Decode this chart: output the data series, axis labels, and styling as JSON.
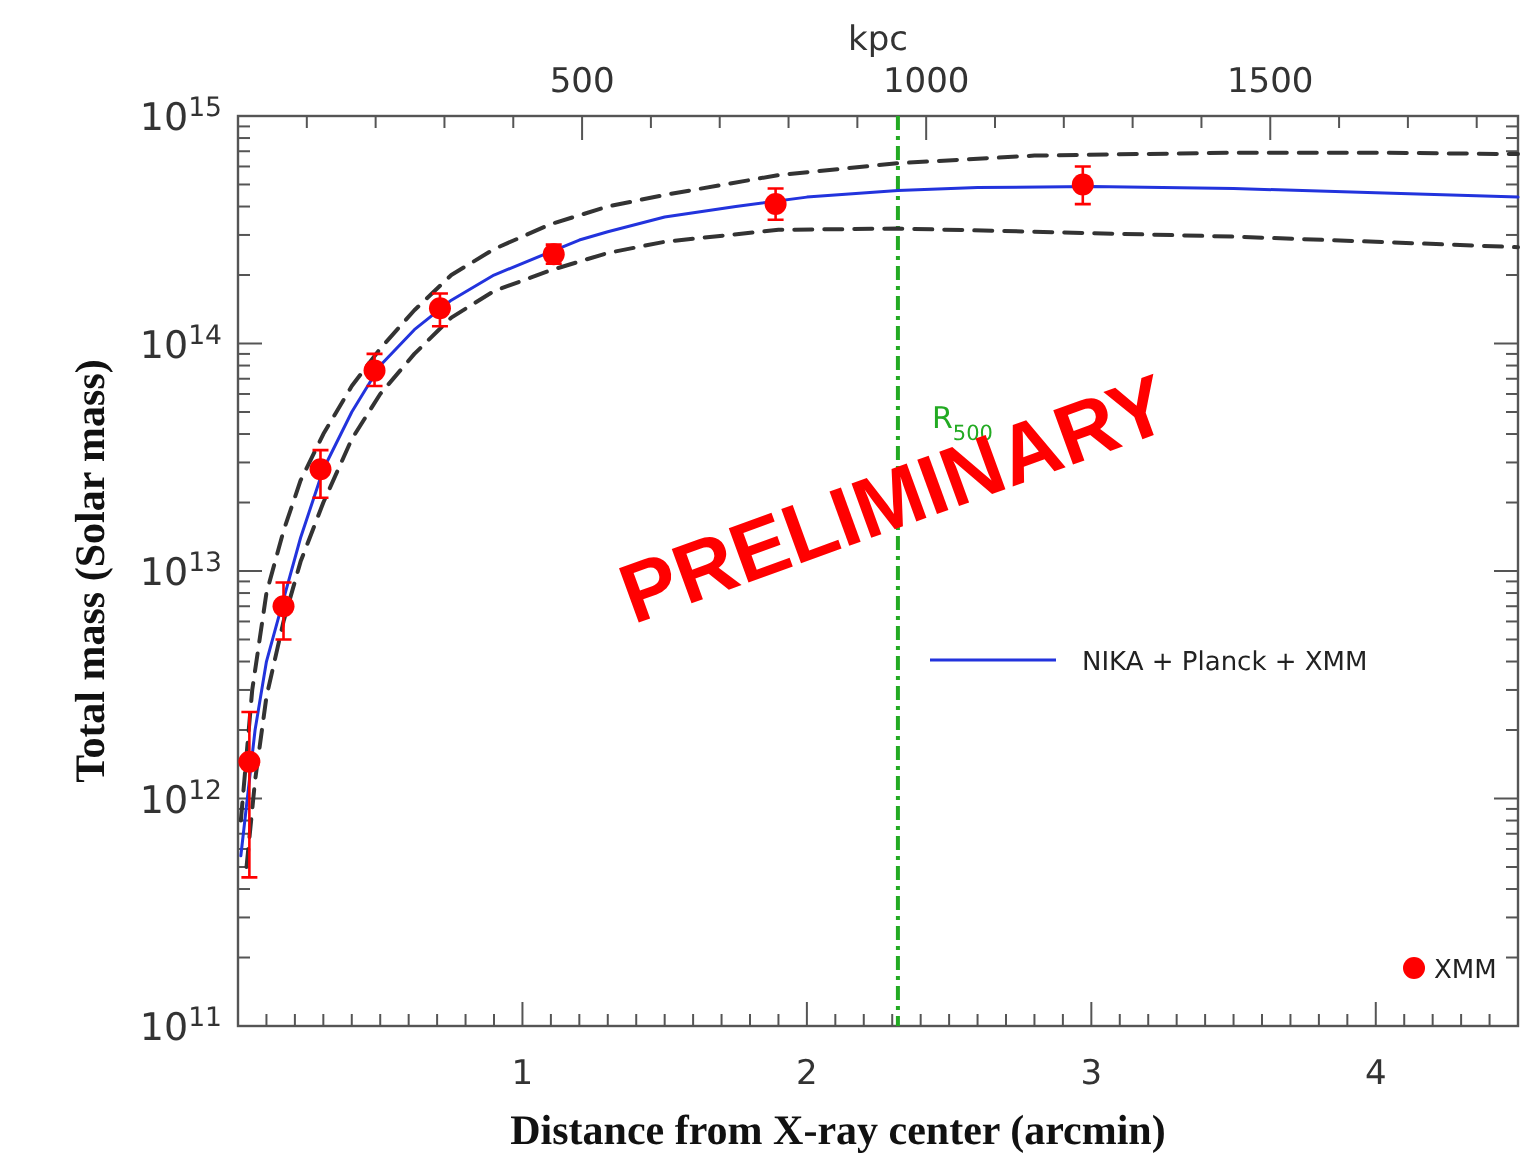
{
  "chart_data": {
    "type": "line",
    "xlabel": "Distance from X-ray center (arcmin)",
    "ylabel": "Total mass (Solar mass)",
    "x2label": "kpc",
    "log": "y",
    "legend": "right",
    "xlim": [
      0,
      4.5
    ],
    "xticks": [
      {
        "value": 0.1,
        "label": null
      },
      {
        "value": 0.2,
        "label": null
      },
      {
        "value": 0.3,
        "label": null
      },
      {
        "value": 0.4,
        "label": null
      },
      {
        "value": 0.5,
        "label": null
      },
      {
        "value": 0.6,
        "label": null
      },
      {
        "value": 0.7,
        "label": null
      },
      {
        "value": 0.8,
        "label": null
      },
      {
        "value": 0.9,
        "label": null
      },
      1,
      {
        "value": 1.1,
        "label": null
      },
      {
        "value": 1.2,
        "label": null
      },
      {
        "value": 1.3,
        "label": null
      },
      {
        "value": 1.4,
        "label": null
      },
      {
        "value": 1.5,
        "label": null
      },
      {
        "value": 1.6,
        "label": null
      },
      {
        "value": 1.7,
        "label": null
      },
      {
        "value": 1.8,
        "label": null
      },
      {
        "value": 1.9,
        "label": null
      },
      2,
      {
        "value": 2.1,
        "label": null
      },
      {
        "value": 2.2,
        "label": null
      },
      {
        "value": 2.3,
        "label": null
      },
      {
        "value": 2.4,
        "label": null
      },
      {
        "value": 2.5,
        "label": null
      },
      {
        "value": 2.6,
        "label": null
      },
      {
        "value": 2.7,
        "label": null
      },
      {
        "value": 2.8,
        "label": null
      },
      {
        "value": 2.9,
        "label": null
      },
      3,
      {
        "value": 3.1,
        "label": null
      },
      {
        "value": 3.2,
        "label": null
      },
      {
        "value": 3.3,
        "label": null
      },
      {
        "value": 3.4,
        "label": null
      },
      {
        "value": 3.5,
        "label": null
      },
      {
        "value": 3.6,
        "label": null
      },
      {
        "value": 3.7,
        "label": null
      },
      {
        "value": 3.8,
        "label": null
      },
      {
        "value": 3.9,
        "label": null
      },
      4,
      {
        "value": 4.1,
        "label": null
      },
      {
        "value": 4.2,
        "label": null
      },
      {
        "value": 4.3,
        "label": null
      },
      {
        "value": 4.4,
        "label": null
      }
    ],
    "x2lim": [
      0,
      1860
    ],
    "x2ticks": [
      {
        "value": 100,
        "label": null
      },
      {
        "value": 200,
        "label": null
      },
      {
        "value": 300,
        "label": null
      },
      {
        "value": 400,
        "label": null
      },
      500,
      {
        "value": 600,
        "label": null
      },
      {
        "value": 700,
        "label": null
      },
      {
        "value": 800,
        "label": null
      },
      {
        "value": 900,
        "label": null
      },
      1000,
      {
        "value": 1100,
        "label": null
      },
      {
        "value": 1200,
        "label": null
      },
      {
        "value": 1300,
        "label": null
      },
      {
        "value": 1400,
        "label": null
      },
      1500,
      {
        "value": 1600,
        "label": null
      },
      {
        "value": 1700,
        "label": null
      },
      {
        "value": 1800,
        "label": null
      }
    ],
    "ylim": [
      100000000000.0,
      1000000000000000.0
    ],
    "yticks": [
      {
        "value": 100000000000.0,
        "label": "10$^{11}$"
      },
      {
        "value": 200000000000.0,
        "label": null
      },
      {
        "value": 300000000000.0,
        "label": null
      },
      {
        "value": 400000000000.0,
        "label": null
      },
      {
        "value": 500000000000.0,
        "label": null
      },
      {
        "value": 600000000000.0,
        "label": null
      },
      {
        "value": 700000000000.0,
        "label": null
      },
      {
        "value": 800000000000.0,
        "label": null
      },
      {
        "value": 900000000000.0,
        "label": null
      },
      {
        "value": 1000000000000.0,
        "label": "10$^{12}$"
      },
      {
        "value": 2000000000000.0,
        "label": null
      },
      {
        "value": 3000000000000.0,
        "label": null
      },
      {
        "value": 4000000000000.0,
        "label": null
      },
      {
        "value": 5000000000000.0,
        "label": null
      },
      {
        "value": 6000000000000.0,
        "label": null
      },
      {
        "value": 7000000000000.0,
        "label": null
      },
      {
        "value": 8000000000000.0,
        "label": null
      },
      {
        "value": 9000000000000.0,
        "label": null
      },
      {
        "value": 10000000000000.0,
        "label": "10$^{13}$"
      },
      {
        "value": 20000000000000.0,
        "label": null
      },
      {
        "value": 30000000000000.0,
        "label": null
      },
      {
        "value": 40000000000000.0,
        "label": null
      },
      {
        "value": 50000000000000.0,
        "label": null
      },
      {
        "value": 60000000000000.0,
        "label": null
      },
      {
        "value": 70000000000000.0,
        "label": null
      },
      {
        "value": 80000000000000.0,
        "label": null
      },
      {
        "value": 90000000000000.0,
        "label": null
      },
      {
        "value": 100000000000000.0,
        "label": "10$^{14}$"
      },
      {
        "value": 200000000000000.0,
        "label": null
      },
      {
        "value": 300000000000000.0,
        "label": null
      },
      {
        "value": 400000000000000.0,
        "label": null
      },
      {
        "value": 500000000000000.0,
        "label": null
      },
      {
        "value": 600000000000000.0,
        "label": null
      },
      {
        "value": 700000000000000.0,
        "label": null
      },
      {
        "value": 800000000000000.0,
        "label": null
      },
      {
        "value": 900000000000000.0,
        "label": null
      },
      {
        "value": 1000000000000000.0,
        "label": "10$^{15}$"
      }
    ],
    "ref_lines": [
      {
        "axis": "x",
        "value": 2.32,
        "label": "R$_{500}$",
        "color": "#22aa22"
      }
    ],
    "annotations": [
      "PRELIMINARY"
    ],
    "series": [
      {
        "name": "NIKA + Planck + XMM",
        "color": "#2233dd",
        "x": [
          0.01,
          0.06,
          0.1,
          0.16,
          0.22,
          0.3,
          0.4,
          0.5,
          0.62,
          0.75,
          0.9,
          1.2,
          1.3,
          1.5,
          1.75,
          2.0,
          2.32,
          2.6,
          3.0,
          3.5,
          4.0,
          4.5
        ],
        "values": [
          560000000000.0,
          2000000000000.0,
          4000000000000.0,
          7500000000000.0,
          14000000000000.0,
          28000000000000.0,
          50000000000000.0,
          80000000000000.0,
          115000000000000.0,
          155000000000000.0,
          200000000000000.0,
          285000000000000.0,
          310000000000000.0,
          360000000000000.0,
          400000000000000.0,
          440000000000000.0,
          470000000000000.0,
          485000000000000.0,
          490000000000000.0,
          480000000000000.0,
          460000000000000.0,
          440000000000000.0
        ]
      },
      {
        "color": "#333333",
        "line_style": "dashed",
        "x": [
          0.01,
          0.05,
          0.1,
          0.16,
          0.22,
          0.3,
          0.4,
          0.5,
          0.62,
          0.75,
          0.9,
          1.1,
          1.3,
          1.5,
          1.9,
          2.32,
          2.8,
          3.5,
          4.0,
          4.5
        ],
        "values": [
          800000000000.0,
          3000000000000.0,
          8000000000000.0,
          15000000000000.0,
          25000000000000.0,
          40000000000000.0,
          65000000000000.0,
          95000000000000.0,
          140000000000000.0,
          200000000000000.0,
          260000000000000.0,
          335000000000000.0,
          400000000000000.0,
          450000000000000.0,
          550000000000000.0,
          620000000000000.0,
          670000000000000.0,
          690000000000000.0,
          690000000000000.0,
          680000000000000.0
        ]
      },
      {
        "color": "#333333",
        "line_style": "dashed",
        "x": [
          0.03,
          0.06,
          0.1,
          0.16,
          0.22,
          0.3,
          0.4,
          0.5,
          0.62,
          0.75,
          0.9,
          1.1,
          1.3,
          1.5,
          1.9,
          2.32,
          2.8,
          3.5,
          4.0,
          4.5
        ],
        "values": [
          500000000000.0,
          1200000000000.0,
          2800000000000.0,
          6000000000000.0,
          11000000000000.0,
          20000000000000.0,
          38000000000000.0,
          60000000000000.0,
          90000000000000.0,
          130000000000000.0,
          170000000000000.0,
          210000000000000.0,
          250000000000000.0,
          280000000000000.0,
          316000000000000.0,
          320000000000000.0,
          310000000000000.0,
          295000000000000.0,
          280000000000000.0,
          265000000000000.0
        ]
      },
      {
        "name": "XMM",
        "type": "scatter",
        "marker": "circle",
        "color": "#ff0000",
        "x": [
          0.04,
          0.16,
          0.29,
          0.48,
          0.71,
          1.11,
          1.89,
          2.97
        ],
        "values": [
          1450000000000.0,
          7000000000000.0,
          28000000000000.0,
          76000000000000.0,
          143000000000000.0,
          247000000000000.0,
          410000000000000.0,
          500000000000000.0
        ],
        "errors": [
          [
            450000000000.0,
            2400000000000.0
          ],
          [
            5000000000000.0,
            8900000000000.0
          ],
          [
            21000000000000.0,
            34000000000000.0
          ],
          [
            65000000000000.0,
            90000000000000.0
          ],
          [
            119000000000000.0,
            166000000000000.0
          ],
          [
            224000000000000.0,
            272000000000000.0
          ],
          [
            350000000000000.0,
            480000000000000.0
          ],
          [
            410000000000000.0,
            600000000000000.0
          ]
        ]
      }
    ]
  }
}
